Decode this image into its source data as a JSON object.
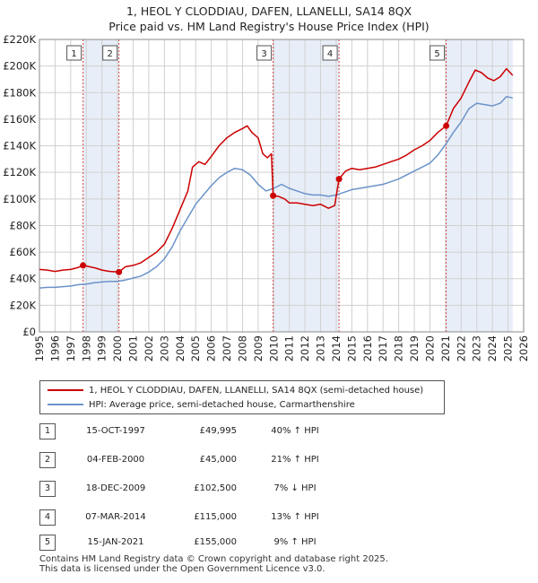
{
  "chart_data": {
    "type": "line",
    "title": "1, HEOL Y CLODDIAU, DAFEN, LLANELLI, SA14 8QX",
    "subtitle": "Price paid vs. HM Land Registry's House Price Index (HPI)",
    "xlim": [
      1995,
      2026
    ],
    "ylim": [
      0,
      220000
    ],
    "x_ticks": [
      "1995",
      "1996",
      "1997",
      "1998",
      "1999",
      "2000",
      "2001",
      "2002",
      "2003",
      "2004",
      "2005",
      "2006",
      "2007",
      "2008",
      "2009",
      "2010",
      "2011",
      "2012",
      "2013",
      "2014",
      "2015",
      "2016",
      "2017",
      "2018",
      "2019",
      "2020",
      "2021",
      "2022",
      "2023",
      "2024",
      "2025",
      "2026"
    ],
    "y_ticks": [
      "£0",
      "£20K",
      "£40K",
      "£60K",
      "£80K",
      "£100K",
      "£120K",
      "£140K",
      "£160K",
      "£180K",
      "£200K",
      "£220K"
    ],
    "grid": true,
    "shaded_periods": [
      [
        1997.79,
        2000.09
      ],
      [
        2009.96,
        2014.18
      ],
      [
        2021.04,
        2025.3
      ]
    ],
    "series": [
      {
        "name": "1, HEOL Y CLODDIAU, DAFEN, LLANELLI, SA14 8QX (semi-detached house)",
        "color": "#cc0000",
        "points": [
          [
            1995.0,
            47000
          ],
          [
            1995.5,
            46500
          ],
          [
            1996.0,
            45500
          ],
          [
            1996.5,
            46500
          ],
          [
            1997.0,
            47000
          ],
          [
            1997.5,
            48500
          ],
          [
            1997.79,
            49995
          ],
          [
            1998.2,
            49000
          ],
          [
            1998.6,
            48000
          ],
          [
            1999.0,
            46500
          ],
          [
            1999.5,
            45500
          ],
          [
            2000.09,
            45000
          ],
          [
            2000.5,
            49000
          ],
          [
            2001.0,
            50000
          ],
          [
            2001.5,
            52000
          ],
          [
            2002.0,
            56000
          ],
          [
            2002.5,
            60000
          ],
          [
            2003.0,
            66000
          ],
          [
            2003.5,
            78000
          ],
          [
            2004.0,
            92000
          ],
          [
            2004.5,
            106000
          ],
          [
            2004.8,
            124000
          ],
          [
            2005.2,
            128000
          ],
          [
            2005.6,
            126000
          ],
          [
            2006.0,
            132000
          ],
          [
            2006.5,
            140000
          ],
          [
            2007.0,
            146000
          ],
          [
            2007.5,
            150000
          ],
          [
            2008.0,
            153000
          ],
          [
            2008.3,
            155000
          ],
          [
            2008.6,
            150000
          ],
          [
            2009.0,
            146000
          ],
          [
            2009.3,
            134000
          ],
          [
            2009.6,
            131000
          ],
          [
            2009.85,
            134000
          ],
          [
            2009.96,
            102500
          ],
          [
            2010.3,
            102000
          ],
          [
            2010.7,
            100000
          ],
          [
            2011.0,
            97000
          ],
          [
            2011.5,
            97000
          ],
          [
            2012.0,
            96000
          ],
          [
            2012.5,
            95000
          ],
          [
            2013.0,
            96000
          ],
          [
            2013.5,
            93000
          ],
          [
            2013.9,
            95000
          ],
          [
            2014.18,
            115000
          ],
          [
            2014.6,
            121000
          ],
          [
            2015.0,
            123000
          ],
          [
            2015.5,
            122000
          ],
          [
            2016.0,
            123000
          ],
          [
            2016.5,
            124000
          ],
          [
            2017.0,
            126000
          ],
          [
            2017.5,
            128000
          ],
          [
            2018.0,
            130000
          ],
          [
            2018.5,
            133000
          ],
          [
            2019.0,
            137000
          ],
          [
            2019.5,
            140000
          ],
          [
            2020.0,
            144000
          ],
          [
            2020.5,
            150000
          ],
          [
            2021.04,
            155000
          ],
          [
            2021.5,
            168000
          ],
          [
            2022.0,
            176000
          ],
          [
            2022.5,
            188000
          ],
          [
            2022.9,
            197000
          ],
          [
            2023.3,
            195000
          ],
          [
            2023.7,
            191000
          ],
          [
            2024.1,
            189000
          ],
          [
            2024.5,
            192000
          ],
          [
            2024.9,
            198000
          ],
          [
            2025.3,
            193000
          ]
        ]
      },
      {
        "name": "HPI: Average price, semi-detached house, Carmarthenshire",
        "color": "#6b93c9",
        "points": [
          [
            1995.0,
            33000
          ],
          [
            1995.5,
            33500
          ],
          [
            1996.0,
            33500
          ],
          [
            1996.5,
            34000
          ],
          [
            1997.0,
            34500
          ],
          [
            1997.5,
            35500
          ],
          [
            1998.0,
            36000
          ],
          [
            1998.5,
            37000
          ],
          [
            1999.0,
            37500
          ],
          [
            1999.5,
            38000
          ],
          [
            2000.0,
            38000
          ],
          [
            2000.5,
            39000
          ],
          [
            2001.0,
            40500
          ],
          [
            2001.5,
            42000
          ],
          [
            2002.0,
            45000
          ],
          [
            2002.5,
            49000
          ],
          [
            2003.0,
            55000
          ],
          [
            2003.5,
            64000
          ],
          [
            2004.0,
            76000
          ],
          [
            2004.5,
            86000
          ],
          [
            2005.0,
            96000
          ],
          [
            2005.5,
            103000
          ],
          [
            2006.0,
            110000
          ],
          [
            2006.5,
            116000
          ],
          [
            2007.0,
            120000
          ],
          [
            2007.5,
            123000
          ],
          [
            2008.0,
            122000
          ],
          [
            2008.5,
            118000
          ],
          [
            2009.0,
            111000
          ],
          [
            2009.5,
            106000
          ],
          [
            2010.0,
            108000
          ],
          [
            2010.5,
            111000
          ],
          [
            2011.0,
            108000
          ],
          [
            2011.5,
            106000
          ],
          [
            2012.0,
            104000
          ],
          [
            2012.5,
            103000
          ],
          [
            2013.0,
            103000
          ],
          [
            2013.5,
            102000
          ],
          [
            2014.0,
            103000
          ],
          [
            2014.5,
            105000
          ],
          [
            2015.0,
            107000
          ],
          [
            2015.5,
            108000
          ],
          [
            2016.0,
            109000
          ],
          [
            2016.5,
            110000
          ],
          [
            2017.0,
            111000
          ],
          [
            2017.5,
            113000
          ],
          [
            2018.0,
            115000
          ],
          [
            2018.5,
            118000
          ],
          [
            2019.0,
            121000
          ],
          [
            2019.5,
            124000
          ],
          [
            2020.0,
            127000
          ],
          [
            2020.5,
            133000
          ],
          [
            2021.0,
            141000
          ],
          [
            2021.5,
            150000
          ],
          [
            2022.0,
            158000
          ],
          [
            2022.5,
            168000
          ],
          [
            2023.0,
            172000
          ],
          [
            2023.5,
            171000
          ],
          [
            2024.0,
            170000
          ],
          [
            2024.5,
            172000
          ],
          [
            2024.9,
            177000
          ],
          [
            2025.3,
            176000
          ]
        ]
      }
    ],
    "sale_markers": [
      {
        "label": "1",
        "x": 1997.79,
        "y": 49995
      },
      {
        "label": "2",
        "x": 2000.09,
        "y": 45000
      },
      {
        "label": "3",
        "x": 2009.96,
        "y": 102500
      },
      {
        "label": "4",
        "x": 2014.18,
        "y": 115000
      },
      {
        "label": "5",
        "x": 2021.04,
        "y": 155000
      }
    ]
  },
  "legend": {
    "property_label": "1, HEOL Y CLODDIAU, DAFEN, LLANELLI, SA14 8QX (semi-detached house)",
    "hpi_label": "HPI: Average price, semi-detached house, Carmarthenshire",
    "property_color": "#cc0000",
    "hpi_color": "#6b93c9"
  },
  "sales": [
    {
      "num": "1",
      "date": "15-OCT-1997",
      "price": "£49,995",
      "hpi": "40% ↑ HPI"
    },
    {
      "num": "2",
      "date": "04-FEB-2000",
      "price": "£45,000",
      "hpi": "21% ↑ HPI"
    },
    {
      "num": "3",
      "date": "18-DEC-2009",
      "price": "£102,500",
      "hpi": "7% ↓ HPI"
    },
    {
      "num": "4",
      "date": "07-MAR-2014",
      "price": "£115,000",
      "hpi": "13% ↑ HPI"
    },
    {
      "num": "5",
      "date": "15-JAN-2021",
      "price": "£155,000",
      "hpi": "9% ↑ HPI"
    }
  ],
  "footer": {
    "line1": "Contains HM Land Registry data © Crown copyright and database right 2025.",
    "line2": "This data is licensed under the Open Government Licence v3.0."
  }
}
